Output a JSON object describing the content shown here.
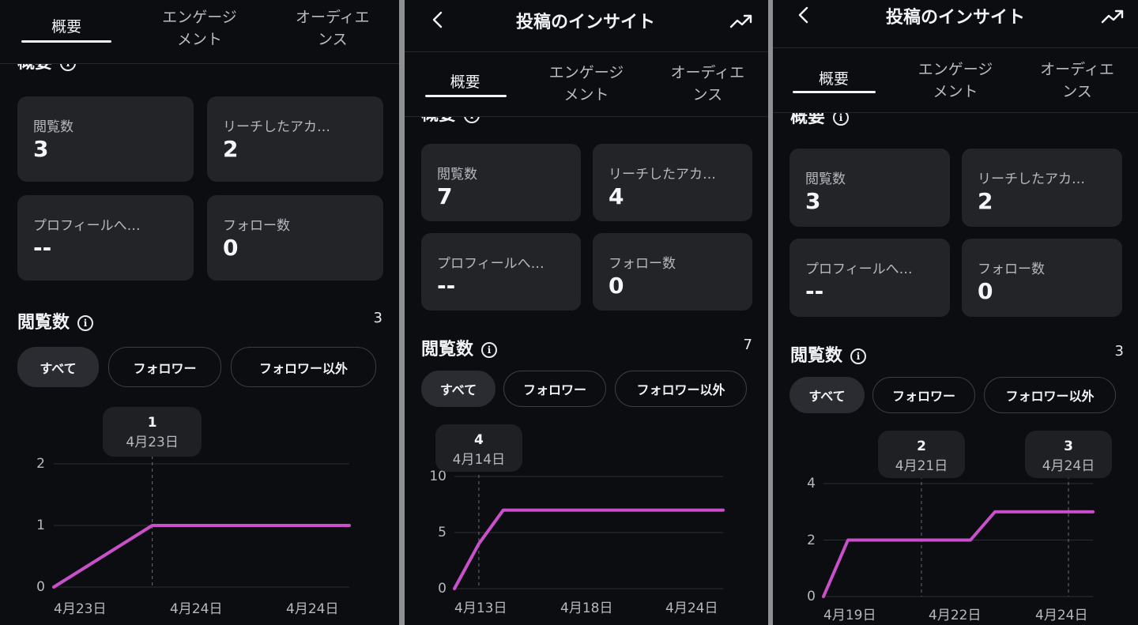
{
  "colors": {
    "accent_line": "#c850c8",
    "background": "#0c0d11",
    "card": "#222428"
  },
  "panels": [
    {
      "header": null,
      "tabs": [
        "概要",
        "エンゲージ\nメント",
        "オーディエ\nンス"
      ],
      "active_tab": 0,
      "overview_title": "概要",
      "cards": [
        {
          "label": "閲覧数",
          "value": "3"
        },
        {
          "label": "リーチしたアカ…",
          "value": "2"
        },
        {
          "label": "プロフィールへ…",
          "value": "--"
        },
        {
          "label": "フォロー数",
          "value": "0"
        }
      ],
      "views_title": "閲覧数",
      "views_count": "3",
      "filters": [
        "すべて",
        "フォロワー",
        "フォロワー以外"
      ],
      "active_filter": 0,
      "chart_data": {
        "type": "line",
        "y_ticks": [
          "0",
          "1",
          "2"
        ],
        "ylim": [
          0,
          2
        ],
        "x_ticks": [
          "4月23日",
          "4月24日",
          "4月24日"
        ],
        "values": [
          0,
          1,
          1,
          1
        ],
        "grid": true,
        "tooltips": [
          {
            "index": 1,
            "value": "1",
            "date": "4月23日"
          }
        ]
      }
    },
    {
      "header": {
        "title": "投稿のインサイト",
        "back_icon": "chevron-left-icon",
        "action_icon": "trending-up-icon"
      },
      "tabs": [
        "概要",
        "エンゲージ\nメント",
        "オーディエ\nンス"
      ],
      "active_tab": 0,
      "overview_title": "概要",
      "cards": [
        {
          "label": "閲覧数",
          "value": "7"
        },
        {
          "label": "リーチしたアカ…",
          "value": "4"
        },
        {
          "label": "プロフィールへ…",
          "value": "--"
        },
        {
          "label": "フォロー数",
          "value": "0"
        }
      ],
      "views_title": "閲覧数",
      "views_count": "7",
      "filters": [
        "すべて",
        "フォロワー",
        "フォロワー以外"
      ],
      "active_filter": 0,
      "chart_data": {
        "type": "line",
        "y_ticks": [
          "0",
          "5",
          "10"
        ],
        "ylim": [
          0,
          10
        ],
        "x_ticks": [
          "4月13日",
          "4月18日",
          "4月24日"
        ],
        "values": [
          0,
          4,
          7,
          7,
          7,
          7,
          7,
          7,
          7,
          7,
          7,
          7
        ],
        "grid": true,
        "tooltips": [
          {
            "index": 1,
            "value": "4",
            "date": "4月14日"
          }
        ]
      }
    },
    {
      "header": {
        "title": "投稿のインサイト",
        "back_icon": "chevron-left-icon",
        "action_icon": "trending-up-icon"
      },
      "tabs": [
        "概要",
        "エンゲージ\nメント",
        "オーディエ\nンス"
      ],
      "active_tab": 0,
      "overview_title": "概要",
      "cards": [
        {
          "label": "閲覧数",
          "value": "3"
        },
        {
          "label": "リーチしたアカ…",
          "value": "2"
        },
        {
          "label": "プロフィールへ…",
          "value": "--"
        },
        {
          "label": "フォロー数",
          "value": "0"
        }
      ],
      "views_title": "閲覧数",
      "views_count": "3",
      "filters": [
        "すべて",
        "フォロワー",
        "フォロワー以外"
      ],
      "active_filter": 0,
      "chart_data": {
        "type": "line",
        "y_ticks": [
          "0",
          "2",
          "4"
        ],
        "ylim": [
          0,
          4
        ],
        "x_ticks": [
          "4月19日",
          "4月22日",
          "4月24日"
        ],
        "values": [
          0,
          2,
          2,
          2,
          2,
          2,
          2,
          3,
          3,
          3,
          3,
          3
        ],
        "grid": true,
        "tooltips": [
          {
            "index": 4,
            "value": "2",
            "date": "4月21日"
          },
          {
            "index": 10,
            "value": "3",
            "date": "4月24日"
          }
        ]
      }
    }
  ]
}
